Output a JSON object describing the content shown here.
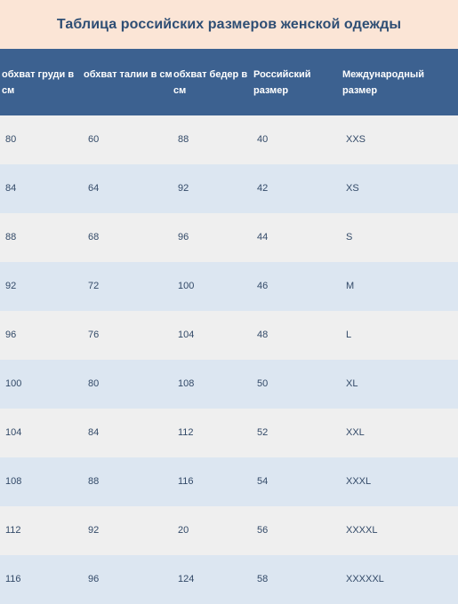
{
  "title": "Таблица российских размеров женской одежды",
  "headers": [
    "обхват груди в см",
    "обхват талии в см",
    "обхват бедер в см",
    "Российский размер",
    "Международный размер"
  ],
  "rows": [
    [
      "80",
      "60",
      "88",
      "40",
      "XXS"
    ],
    [
      "84",
      "64",
      "92",
      "42",
      "XS"
    ],
    [
      "88",
      "68",
      "96",
      "44",
      "S"
    ],
    [
      "92",
      "72",
      "100",
      "46",
      "M"
    ],
    [
      "96",
      "76",
      "104",
      "48",
      "L"
    ],
    [
      "100",
      "80",
      "108",
      "50",
      "XL"
    ],
    [
      "104",
      "84",
      "112",
      "52",
      "XXL"
    ],
    [
      "108",
      "88",
      "116",
      "54",
      "XXXL"
    ],
    [
      "112",
      "92",
      "20",
      "56",
      "XXXXL"
    ],
    [
      "116",
      "96",
      "124",
      "58",
      "XXXXXL"
    ]
  ]
}
